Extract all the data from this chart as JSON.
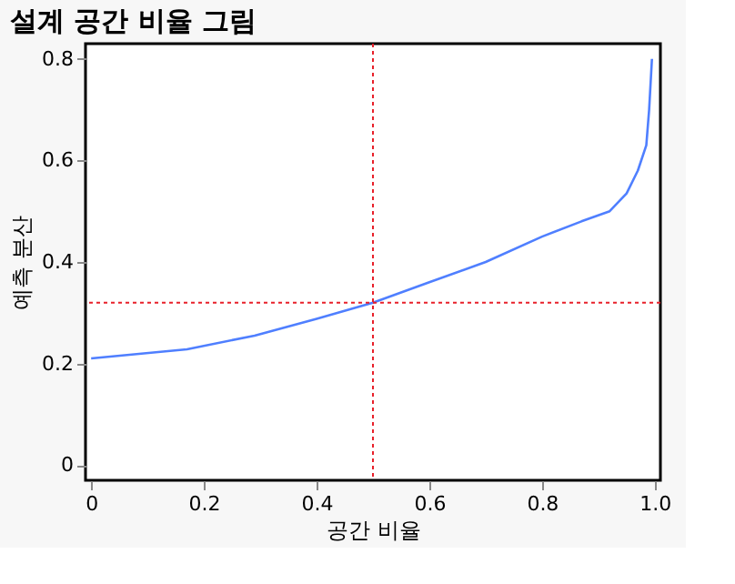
{
  "chart_data": {
    "type": "line",
    "title": "설계 공간 비율 그림",
    "xlabel": "공간 비율",
    "ylabel": "예측 분산",
    "x": [
      0,
      0.17,
      0.29,
      0.4,
      0.5,
      0.6,
      0.7,
      0.8,
      0.87,
      0.92,
      0.95,
      0.97,
      0.985,
      0.99,
      0.995
    ],
    "series": [
      {
        "color": "#4f7fff",
        "values": [
          0.21,
          0.228,
          0.255,
          0.288,
          0.32,
          0.36,
          0.4,
          0.45,
          0.48,
          0.5,
          0.535,
          0.58,
          0.63,
          0.7,
          0.8
        ]
      }
    ],
    "xlim": [
      -0.01,
      1.01
    ],
    "ylim": [
      -0.03,
      0.83
    ],
    "xticks": [
      0,
      0.2,
      0.4,
      0.6,
      0.8,
      {
        "value": 1,
        "label": "1.0"
      }
    ],
    "yticks": [
      0,
      0.2,
      0.4,
      0.6,
      0.8
    ],
    "ref_lines": [
      {
        "axis": "x",
        "value": 0.5,
        "color": "#e8202a",
        "line_style": "dotted"
      },
      {
        "axis": "y",
        "value": 0.32,
        "color": "#e8202a",
        "line_style": "dotted"
      }
    ],
    "marker": "none",
    "line_style": "solid"
  }
}
